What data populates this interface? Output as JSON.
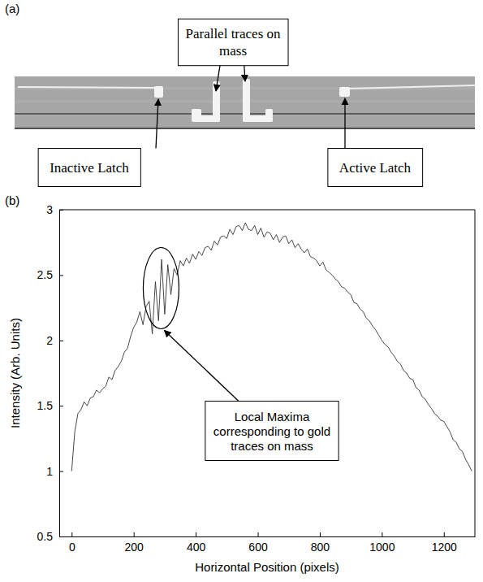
{
  "panel_a": {
    "letter": "(a)",
    "labels": {
      "parallel_traces": "Parallel traces on mass",
      "inactive_latch": "Inactive Latch",
      "active_latch": "Active Latch"
    }
  },
  "chart_data": {
    "type": "line",
    "panel_label": "(b)",
    "xlabel": "Horizontal Position (pixels)",
    "ylabel": "Intensity (Arb. Units)",
    "annotations": [
      {
        "text": "Local Maxima corresponding to gold traces on mass"
      }
    ],
    "xlim": [
      -40,
      1300
    ],
    "xticks": [
      0,
      200,
      400,
      600,
      800,
      1000,
      1200
    ],
    "ylim": [
      0.5,
      3
    ],
    "yticks": [
      0.5,
      1,
      1.5,
      2,
      2.5,
      3
    ],
    "grid": false,
    "x": [
      0,
      10,
      20,
      30,
      40,
      50,
      60,
      70,
      80,
      90,
      100,
      110,
      120,
      130,
      140,
      150,
      160,
      170,
      180,
      190,
      200,
      210,
      220,
      230,
      240,
      250,
      260,
      270,
      280,
      290,
      300,
      310,
      320,
      330,
      340,
      350,
      360,
      370,
      380,
      390,
      400,
      410,
      420,
      430,
      440,
      450,
      460,
      470,
      480,
      490,
      500,
      510,
      520,
      530,
      540,
      550,
      560,
      570,
      580,
      590,
      600,
      610,
      620,
      630,
      640,
      650,
      660,
      670,
      680,
      690,
      700,
      710,
      720,
      730,
      740,
      750,
      760,
      770,
      780,
      790,
      800,
      810,
      820,
      830,
      840,
      850,
      860,
      870,
      880,
      890,
      900,
      910,
      920,
      930,
      940,
      950,
      960,
      970,
      980,
      990,
      1000,
      1010,
      1020,
      1030,
      1040,
      1050,
      1060,
      1070,
      1080,
      1090,
      1100,
      1110,
      1120,
      1130,
      1140,
      1150,
      1160,
      1170,
      1180,
      1190,
      1200,
      1210,
      1220,
      1230,
      1240,
      1250,
      1260,
      1270,
      1280,
      1290
    ],
    "series": [
      {
        "color": "#333333",
        "values": [
          1.0,
          1.3,
          1.44,
          1.47,
          1.53,
          1.5,
          1.56,
          1.57,
          1.62,
          1.6,
          1.63,
          1.65,
          1.72,
          1.7,
          1.77,
          1.8,
          1.84,
          1.91,
          1.94,
          2.03,
          2.1,
          2.14,
          2.22,
          2.12,
          2.26,
          2.3,
          2.05,
          2.45,
          2.15,
          2.62,
          2.2,
          2.58,
          2.35,
          2.55,
          2.5,
          2.61,
          2.57,
          2.63,
          2.59,
          2.66,
          2.62,
          2.68,
          2.65,
          2.71,
          2.72,
          2.69,
          2.76,
          2.73,
          2.79,
          2.8,
          2.78,
          2.85,
          2.81,
          2.87,
          2.88,
          2.84,
          2.9,
          2.85,
          2.84,
          2.88,
          2.81,
          2.86,
          2.79,
          2.83,
          2.82,
          2.77,
          2.81,
          2.75,
          2.79,
          2.8,
          2.74,
          2.77,
          2.71,
          2.74,
          2.7,
          2.67,
          2.7,
          2.64,
          2.63,
          2.61,
          2.57,
          2.6,
          2.54,
          2.52,
          2.5,
          2.47,
          2.45,
          2.41,
          2.4,
          2.37,
          2.35,
          2.29,
          2.28,
          2.24,
          2.22,
          2.17,
          2.15,
          2.11,
          2.08,
          2.04,
          2.0,
          1.97,
          1.95,
          1.91,
          1.88,
          1.84,
          1.82,
          1.77,
          1.75,
          1.71,
          1.7,
          1.64,
          1.62,
          1.57,
          1.55,
          1.51,
          1.48,
          1.44,
          1.42,
          1.39,
          1.38,
          1.34,
          1.3,
          1.24,
          1.22,
          1.17,
          1.15,
          1.09,
          1.05,
          1.0
        ]
      }
    ]
  }
}
